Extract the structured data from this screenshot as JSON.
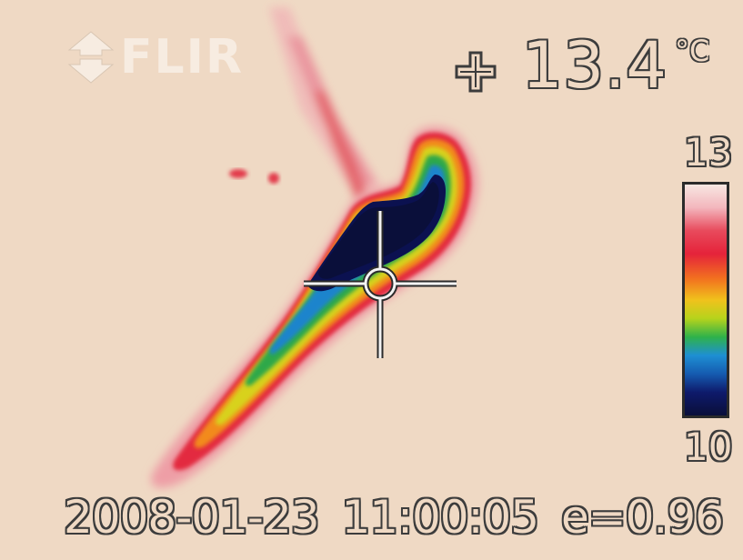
{
  "viewer": {
    "brand": "FLIR",
    "logo_icon": "flir-logo-icon",
    "spot_icon": "crosshair-plus-icon",
    "spot_temperature": "13.4",
    "temperature_unit": "°C",
    "scale_max": "13",
    "scale_min": "10",
    "date": "2008-01-23",
    "time": "11:00:05",
    "emissivity_text": "e=0.96",
    "palette": {
      "background": "#efd9c4",
      "cold": "#0a0f3a",
      "warm": "#e5233a",
      "outline": "#3c3c3c"
    }
  }
}
